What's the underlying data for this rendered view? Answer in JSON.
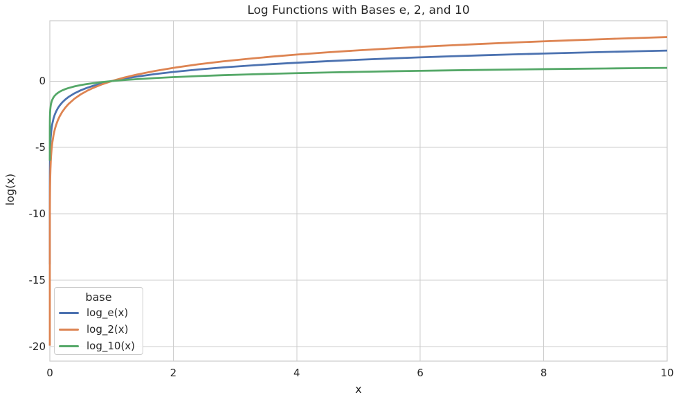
{
  "chart_data": {
    "type": "line",
    "title": "Log Functions with Bases e, 2, and 10",
    "xlabel": "x",
    "ylabel": "log(x)",
    "xlim": [
      0,
      10
    ],
    "ylim": [
      -21.1,
      4.55
    ],
    "xticks": [
      0,
      2,
      4,
      6,
      8,
      10
    ],
    "yticks": [
      0,
      -5,
      -10,
      -15,
      -20
    ],
    "grid": true,
    "background": "#ffffff",
    "grid_color": "#cccccc",
    "text_color": "#262626",
    "legend": {
      "title": "base",
      "position": "lower left"
    },
    "x": [
      1e-06,
      3e-06,
      1e-05,
      3e-05,
      0.0001,
      0.0003,
      0.001,
      0.002,
      0.004,
      0.007,
      0.01,
      0.015,
      0.02,
      0.03,
      0.04,
      0.06,
      0.08,
      0.1,
      0.13,
      0.16,
      0.2,
      0.25,
      0.3,
      0.4,
      0.5,
      0.6,
      0.7,
      0.85,
      1.0,
      1.2,
      1.4,
      1.7,
      2.0,
      2.4,
      2.8,
      3.2,
      3.6,
      4.0,
      4.5,
      5.0,
      5.5,
      6.0,
      6.5,
      7.0,
      7.5,
      8.0,
      8.5,
      9.0,
      9.5,
      10.0
    ],
    "series": [
      {
        "name": "log_e(x)",
        "color": "#4C72B0",
        "values": [
          -13.816,
          -12.717,
          -11.513,
          -10.414,
          -9.21,
          -8.112,
          -6.908,
          -6.215,
          -5.521,
          -4.962,
          -4.605,
          -4.2,
          -3.912,
          -3.507,
          -3.219,
          -2.813,
          -2.526,
          -2.303,
          -2.04,
          -1.833,
          -1.609,
          -1.386,
          -1.204,
          -0.916,
          -0.693,
          -0.511,
          -0.357,
          -0.163,
          0.0,
          0.182,
          0.336,
          0.531,
          0.693,
          0.875,
          1.03,
          1.163,
          1.281,
          1.386,
          1.504,
          1.609,
          1.705,
          1.792,
          1.872,
          1.946,
          2.015,
          2.079,
          2.14,
          2.197,
          2.251,
          2.303
        ]
      },
      {
        "name": "log_2(x)",
        "color": "#DD8452",
        "values": [
          -19.932,
          -18.347,
          -16.61,
          -15.025,
          -13.288,
          -11.703,
          -9.966,
          -8.966,
          -7.966,
          -7.158,
          -6.644,
          -6.059,
          -5.644,
          -5.059,
          -4.644,
          -4.059,
          -3.644,
          -3.322,
          -2.943,
          -2.644,
          -2.322,
          -2.0,
          -1.737,
          -1.322,
          -1.0,
          -0.737,
          -0.515,
          -0.234,
          0.0,
          0.263,
          0.485,
          0.766,
          1.0,
          1.263,
          1.485,
          1.678,
          1.848,
          2.0,
          2.17,
          2.322,
          2.459,
          2.585,
          2.7,
          2.807,
          2.907,
          3.0,
          3.087,
          3.17,
          3.248,
          3.322
        ]
      },
      {
        "name": "log_10(x)",
        "color": "#55A868",
        "values": [
          -6.0,
          -5.523,
          -5.0,
          -4.523,
          -4.0,
          -3.523,
          -3.0,
          -2.699,
          -2.398,
          -2.155,
          -2.0,
          -1.824,
          -1.699,
          -1.523,
          -1.398,
          -1.222,
          -1.097,
          -1.0,
          -0.886,
          -0.796,
          -0.699,
          -0.602,
          -0.523,
          -0.398,
          -0.301,
          -0.222,
          -0.155,
          -0.071,
          0.0,
          0.079,
          0.146,
          0.23,
          0.301,
          0.38,
          0.447,
          0.505,
          0.556,
          0.602,
          0.653,
          0.699,
          0.74,
          0.778,
          0.813,
          0.845,
          0.875,
          0.903,
          0.929,
          0.954,
          0.978,
          1.0
        ]
      }
    ]
  }
}
